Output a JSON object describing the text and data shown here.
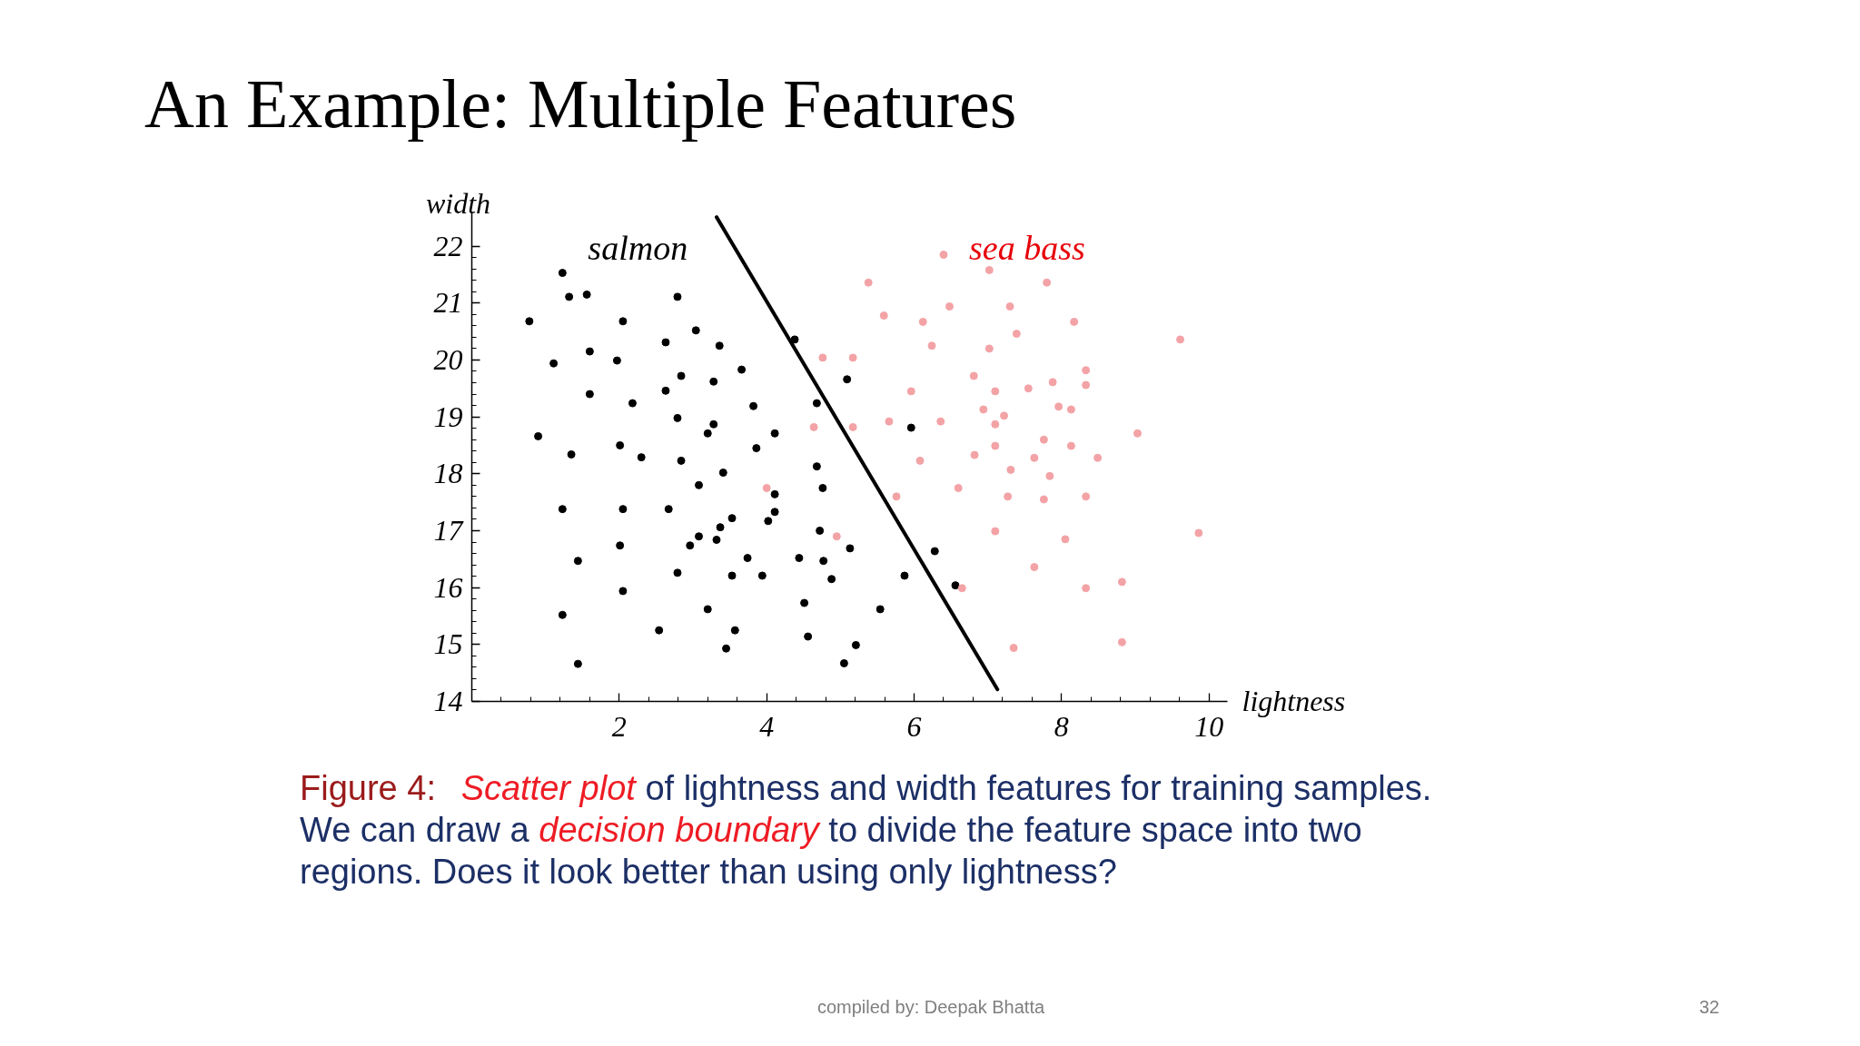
{
  "chart_data": {
    "type": "scatter",
    "title": "An Example: Multiple Features",
    "xlabel": "lightness",
    "ylabel": "width",
    "xlim": [
      0,
      10.25
    ],
    "ylim": [
      14,
      22.6
    ],
    "xticks": [
      {
        "value": 0.4,
        "label": null
      },
      {
        "value": 0.8,
        "label": null
      },
      {
        "value": 1.2,
        "label": null
      },
      {
        "value": 1.6,
        "label": null
      },
      2,
      {
        "value": 2.4,
        "label": null
      },
      {
        "value": 2.8,
        "label": null
      },
      {
        "value": 3.2,
        "label": null
      },
      {
        "value": 3.6,
        "label": null
      },
      4,
      {
        "value": 4.4,
        "label": null
      },
      {
        "value": 4.8,
        "label": null
      },
      {
        "value": 5.2,
        "label": null
      },
      {
        "value": 5.6,
        "label": null
      },
      6,
      {
        "value": 6.4,
        "label": null
      },
      {
        "value": 6.8,
        "label": null
      },
      {
        "value": 7.2,
        "label": null
      },
      {
        "value": 7.6,
        "label": null
      },
      8,
      {
        "value": 8.4,
        "label": null
      },
      {
        "value": 8.8,
        "label": null
      },
      {
        "value": 9.2,
        "label": null
      },
      {
        "value": 9.6,
        "label": null
      },
      10
    ],
    "yticks": [
      14,
      {
        "value": 14.2,
        "label": null
      },
      {
        "value": 14.4,
        "label": null
      },
      {
        "value": 14.6,
        "label": null
      },
      {
        "value": 14.8,
        "label": null
      },
      15,
      {
        "value": 15.2,
        "label": null
      },
      {
        "value": 15.4,
        "label": null
      },
      {
        "value": 15.6,
        "label": null
      },
      {
        "value": 15.8,
        "label": null
      },
      16,
      {
        "value": 16.2,
        "label": null
      },
      {
        "value": 16.4,
        "label": null
      },
      {
        "value": 16.6,
        "label": null
      },
      {
        "value": 16.8,
        "label": null
      },
      17,
      {
        "value": 17.2,
        "label": null
      },
      {
        "value": 17.4,
        "label": null
      },
      {
        "value": 17.6,
        "label": null
      },
      {
        "value": 17.8,
        "label": null
      },
      18,
      {
        "value": 18.2,
        "label": null
      },
      {
        "value": 18.4,
        "label": null
      },
      {
        "value": 18.6,
        "label": null
      },
      {
        "value": 18.8,
        "label": null
      },
      19,
      {
        "value": 19.2,
        "label": null
      },
      {
        "value": 19.4,
        "label": null
      },
      {
        "value": 19.6,
        "label": null
      },
      {
        "value": 19.8,
        "label": null
      },
      20,
      {
        "value": 20.2,
        "label": null
      },
      {
        "value": 20.4,
        "label": null
      },
      {
        "value": 20.6,
        "label": null
      },
      {
        "value": 20.8,
        "label": null
      },
      21,
      {
        "value": 21.2,
        "label": null
      },
      {
        "value": 21.4,
        "label": null
      },
      {
        "value": 21.6,
        "label": null
      },
      {
        "value": 21.8,
        "label": null
      },
      22
    ],
    "marker": "circle",
    "line_style": "solid",
    "grid": false,
    "legend": false,
    "series": [
      {
        "name": "salmon",
        "color": "#000000",
        "x": [
          1.23,
          1.32,
          1.56,
          2.79,
          0.78,
          2.05,
          3.04,
          2.63,
          3.36,
          4.38,
          1.6,
          1.11,
          1.97,
          3.66,
          2.84,
          3.28,
          1.6,
          2.63,
          2.18,
          3.82,
          4.68,
          2.79,
          3.28,
          3.2,
          4.11,
          0.9,
          1.35,
          2.01,
          2.3,
          2.84,
          3.86,
          4.68,
          3.41,
          3.08,
          4.11,
          4.76,
          1.23,
          2.05,
          2.67,
          4.11,
          4.02,
          3.53,
          3.37,
          3.08,
          3.32,
          2.96,
          2.01,
          4.72,
          1.44,
          3.74,
          4.44,
          4.77,
          2.79,
          3.53,
          3.94,
          4.88,
          2.05,
          4.51,
          3.2,
          1.23,
          2.54,
          3.57,
          4.56,
          3.45,
          1.44,
          5.13,
          5.87,
          6.28,
          6.56,
          5.54,
          5.21,
          5.05,
          5.09,
          5.96
        ],
        "values": [
          21.53,
          21.11,
          21.15,
          21.11,
          20.68,
          20.68,
          20.52,
          20.31,
          20.25,
          20.36,
          20.15,
          19.94,
          19.99,
          19.83,
          19.72,
          19.62,
          19.4,
          19.46,
          19.24,
          19.19,
          19.24,
          18.98,
          18.87,
          18.71,
          18.71,
          18.66,
          18.34,
          18.5,
          18.29,
          18.23,
          18.45,
          18.13,
          18.02,
          17.8,
          17.64,
          17.75,
          17.38,
          17.38,
          17.38,
          17.33,
          17.17,
          17.22,
          17.06,
          16.9,
          16.84,
          16.74,
          16.74,
          17.0,
          16.47,
          16.52,
          16.52,
          16.47,
          16.26,
          16.21,
          16.21,
          16.15,
          15.94,
          15.73,
          15.62,
          15.52,
          15.25,
          15.25,
          15.14,
          14.93,
          14.66,
          16.69,
          16.21,
          16.64,
          16.04,
          15.62,
          14.99,
          14.67,
          19.66,
          18.81
        ]
      },
      {
        "name": "sea bass",
        "color": "#f3a3a6",
        "x": [
          4.76,
          4.64,
          4.0,
          4.95,
          5.76,
          6.08,
          6.6,
          6.82,
          7.27,
          7.31,
          7.63,
          7.84,
          7.76,
          8.33,
          8.49,
          7.1,
          8.05,
          9.86,
          7.63,
          6.65,
          8.33,
          8.82,
          7.35,
          8.82,
          6.4,
          7.02,
          5.38,
          7.8,
          6.48,
          7.3,
          5.59,
          6.12,
          8.17,
          7.39,
          6.24,
          7.02,
          9.61,
          5.17,
          6.81,
          8.33,
          8.33,
          7.88,
          7.55,
          5.96,
          7.1,
          6.94,
          7.22,
          7.96,
          8.13,
          7.1,
          5.66,
          6.36,
          5.17,
          9.03,
          7.76,
          8.13,
          7.1
        ],
        "values": [
          20.04,
          18.82,
          17.75,
          16.9,
          17.6,
          18.23,
          17.75,
          18.33,
          17.6,
          18.07,
          18.28,
          17.96,
          17.55,
          17.6,
          18.28,
          16.99,
          16.85,
          16.96,
          16.36,
          15.99,
          15.99,
          16.1,
          14.94,
          15.04,
          21.85,
          21.58,
          21.36,
          21.36,
          20.94,
          20.94,
          20.78,
          20.67,
          20.67,
          20.46,
          20.25,
          20.2,
          20.36,
          20.04,
          19.72,
          19.82,
          19.56,
          19.61,
          19.5,
          19.45,
          19.45,
          19.13,
          19.02,
          19.18,
          19.13,
          18.87,
          18.92,
          18.92,
          18.82,
          18.71,
          18.6,
          18.49,
          18.49
        ]
      },
      {
        "type": "line",
        "color": "#000000",
        "marker": "none",
        "x": [
          3.32,
          7.13
        ],
        "values": [
          22.51,
          14.21
        ]
      }
    ],
    "annotations": [
      "Figure 4:",
      "Scatter plot",
      "of lightness and width features for training samples.",
      "We can draw a",
      "decision boundary",
      "to divide the feature space into two",
      "regions. Does it look better than using only lightness?",
      "compiled by: Deepak Bhatta",
      "32"
    ]
  }
}
